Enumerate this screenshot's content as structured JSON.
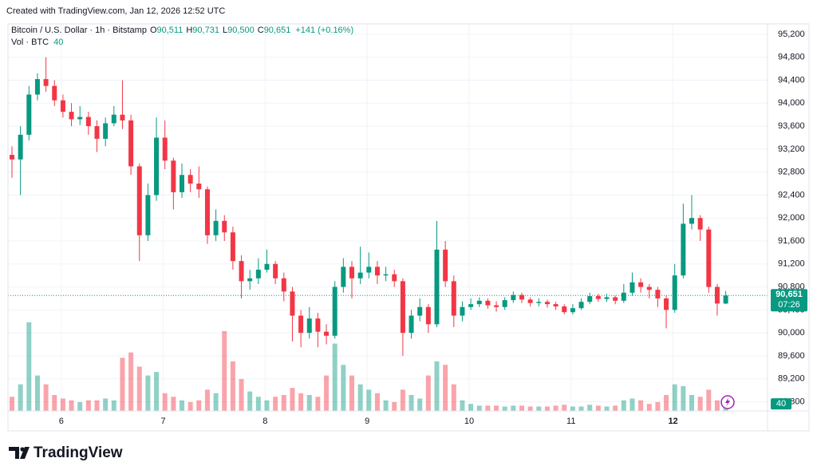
{
  "credit": "Created with TradingView.com, Jan 12, 2026 12:52 UTC",
  "header": {
    "symbol": "Bitcoin / U.S. Dollar · 1h · Bitstamp",
    "o_label": "O",
    "o": "90,511",
    "h_label": "H",
    "h": "90,731",
    "l_label": "L",
    "l": "90,500",
    "c_label": "C",
    "c": "90,651",
    "change": "+141 (+0.16%)",
    "vol_name": "Vol · BTC",
    "vol_value": "40"
  },
  "logo": "TradingView",
  "chart_data": {
    "type": "candlestick",
    "up_color": "#089981",
    "down_color": "#f23645",
    "grid": true,
    "open": [
      93100,
      93020,
      93450,
      94150,
      94420,
      94300,
      94050,
      93850,
      93720,
      93760,
      93600,
      93380,
      93650,
      93800,
      93700,
      92900,
      91700,
      92400,
      93400,
      93000,
      92450,
      92750,
      92600,
      92500,
      91700,
      91950,
      91750,
      91250,
      90900,
      90950,
      91100,
      91200,
      90950,
      90720,
      90300,
      90000,
      90250,
      90020,
      89950,
      90800,
      91150,
      90950,
      91050,
      91150,
      91000,
      91020,
      90900,
      90000,
      90300,
      90450,
      90150,
      91450,
      90900,
      90300,
      90450,
      90500,
      90560,
      90480,
      90450,
      90570,
      90660,
      90580,
      90520,
      90540,
      90500,
      90460,
      90360,
      90430,
      90540,
      90640,
      90590,
      90620,
      90560,
      90700,
      90880,
      90800,
      90750,
      90600,
      90400,
      91000,
      91900,
      92000,
      91800,
      90800,
      90511
    ],
    "high": [
      93250,
      93600,
      94300,
      94520,
      94800,
      94400,
      94150,
      94000,
      93950,
      93850,
      93700,
      93750,
      93950,
      94400,
      93800,
      92950,
      92600,
      93750,
      93700,
      93050,
      92950,
      92850,
      92900,
      92550,
      92150,
      92050,
      91850,
      91350,
      91100,
      91300,
      91450,
      91250,
      91050,
      90800,
      90400,
      90450,
      90350,
      90150,
      90900,
      91300,
      91250,
      91500,
      91400,
      91250,
      91150,
      91100,
      90950,
      90400,
      90600,
      90500,
      91950,
      91600,
      91000,
      90550,
      90600,
      90620,
      90600,
      90550,
      90620,
      90720,
      90700,
      90620,
      90600,
      90580,
      90540,
      90500,
      90500,
      90600,
      90700,
      90680,
      90680,
      90650,
      90850,
      91050,
      90950,
      90850,
      90800,
      90650,
      91200,
      92250,
      92400,
      92050,
      91850,
      90850,
      90731
    ],
    "low": [
      92700,
      92400,
      93350,
      94050,
      94200,
      93950,
      93750,
      93600,
      93620,
      93450,
      93150,
      93250,
      93600,
      93550,
      92750,
      91250,
      91600,
      92300,
      92850,
      92150,
      92350,
      92450,
      92350,
      91550,
      91600,
      91600,
      91100,
      90600,
      90750,
      90850,
      91050,
      90850,
      90550,
      89850,
      89750,
      89900,
      89750,
      89800,
      89900,
      90700,
      90600,
      90850,
      90950,
      90850,
      90900,
      90800,
      89600,
      89900,
      90200,
      90000,
      90100,
      90800,
      90100,
      90200,
      90400,
      90450,
      90420,
      90370,
      90400,
      90520,
      90520,
      90460,
      90460,
      90440,
      90400,
      90320,
      90320,
      90400,
      90500,
      90540,
      90540,
      90500,
      90520,
      90650,
      90700,
      90600,
      90450,
      90080,
      90350,
      90950,
      91800,
      91600,
      90700,
      90300,
      90500
    ],
    "close": [
      93020,
      93450,
      94150,
      94420,
      94300,
      94050,
      93850,
      93720,
      93760,
      93600,
      93380,
      93650,
      93800,
      93700,
      92900,
      91700,
      92400,
      93400,
      93000,
      92450,
      92750,
      92600,
      92500,
      91700,
      91950,
      91750,
      91250,
      90900,
      90950,
      91100,
      91200,
      90950,
      90720,
      90300,
      90000,
      90250,
      90020,
      89950,
      90800,
      91150,
      90950,
      91050,
      91150,
      91000,
      91020,
      90900,
      90000,
      90300,
      90450,
      90150,
      91450,
      90900,
      90300,
      90450,
      90500,
      90560,
      90480,
      90450,
      90570,
      90660,
      90580,
      90520,
      90540,
      90500,
      90460,
      90360,
      90430,
      90540,
      90640,
      90590,
      90620,
      90560,
      90700,
      90880,
      90800,
      90750,
      90600,
      90400,
      91000,
      91900,
      92000,
      91800,
      90800,
      90511,
      90651
    ],
    "volume": [
      80,
      150,
      500,
      200,
      150,
      90,
      70,
      60,
      50,
      60,
      60,
      70,
      60,
      300,
      330,
      250,
      200,
      220,
      100,
      80,
      60,
      50,
      60,
      120,
      100,
      450,
      280,
      180,
      110,
      80,
      60,
      80,
      90,
      130,
      100,
      90,
      80,
      200,
      380,
      260,
      200,
      150,
      120,
      100,
      60,
      50,
      120,
      90,
      70,
      200,
      280,
      260,
      150,
      60,
      40,
      30,
      30,
      30,
      25,
      30,
      30,
      25,
      25,
      25,
      30,
      35,
      25,
      25,
      35,
      30,
      25,
      30,
      60,
      70,
      60,
      40,
      50,
      90,
      150,
      140,
      90,
      80,
      120,
      60,
      40
    ],
    "xlim": [
      -0.47,
      88.92
    ],
    "xticks": [
      {
        "value": 5.8,
        "label": "6"
      },
      {
        "value": 17.8,
        "label": "7"
      },
      {
        "value": 29.8,
        "label": "8"
      },
      {
        "value": 41.8,
        "label": "9"
      },
      {
        "value": 53.8,
        "label": "10"
      },
      {
        "value": 65.8,
        "label": "11"
      },
      {
        "value": 77.8,
        "label": "12"
      }
    ],
    "ylim": [
      88640,
      95380
    ],
    "yticks": [
      {
        "value": 88800,
        "label": "88,800"
      },
      {
        "value": 89200,
        "label": "89,200"
      },
      {
        "value": 89600,
        "label": "89,600"
      },
      {
        "value": 90000,
        "label": "90,000"
      },
      {
        "value": 90400,
        "label": "90,400"
      },
      {
        "value": 90800,
        "label": "90,800"
      },
      {
        "value": 91200,
        "label": "91,200"
      },
      {
        "value": 91600,
        "label": "91,600"
      },
      {
        "value": 92000,
        "label": "92,000"
      },
      {
        "value": 92400,
        "label": "92,400"
      },
      {
        "value": 92800,
        "label": "92,800"
      },
      {
        "value": 93200,
        "label": "93,200"
      },
      {
        "value": 93600,
        "label": "93,600"
      },
      {
        "value": 94000,
        "label": "94,000"
      },
      {
        "value": 94400,
        "label": "94,400"
      },
      {
        "value": 94800,
        "label": "94,800"
      },
      {
        "value": 95200,
        "label": "95,200"
      }
    ],
    "vlim": [
      0,
      540
    ],
    "last_price": {
      "value": 90651,
      "label": "90,651"
    },
    "countdown": "07:26"
  }
}
